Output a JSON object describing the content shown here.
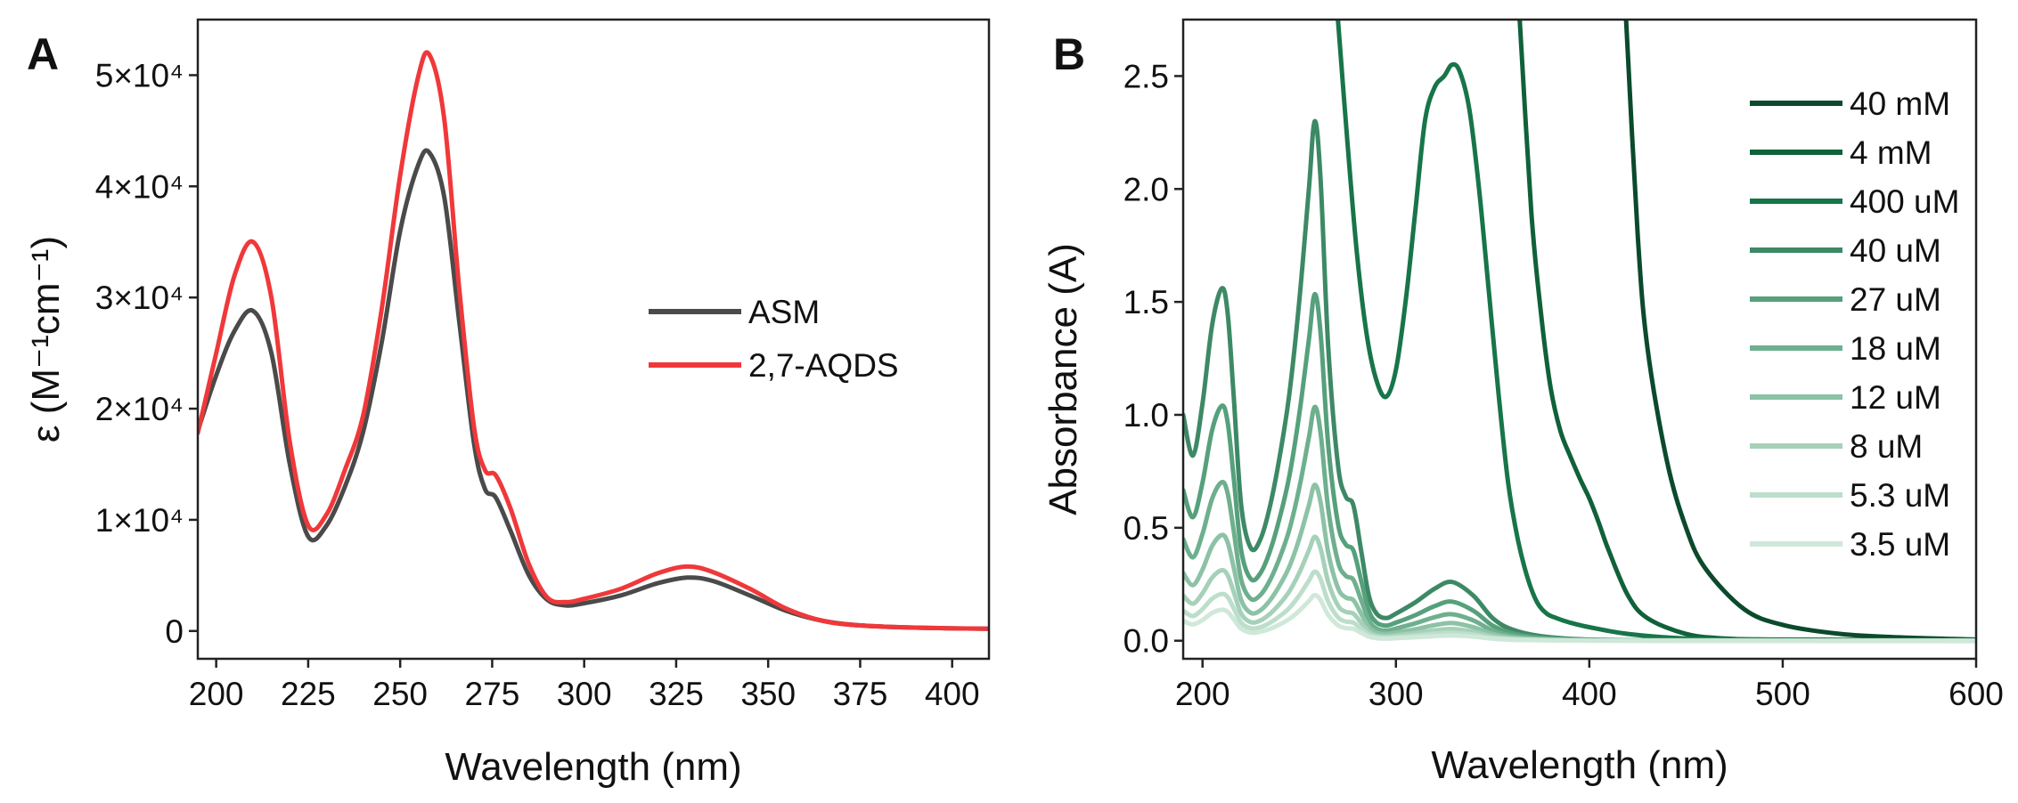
{
  "chart_data": [
    {
      "panel": "A",
      "type": "line",
      "xlabel": "Wavelength (nm)",
      "ylabel": "ε (M⁻¹cm⁻¹)",
      "xlim": [
        195,
        410
      ],
      "ylim": [
        -2500,
        55000
      ],
      "x_ticks": [
        200,
        225,
        250,
        275,
        300,
        325,
        350,
        375,
        400
      ],
      "y_ticks": [
        {
          "value": 0,
          "label": "0"
        },
        {
          "value": 10000,
          "label": "1×10⁴"
        },
        {
          "value": 20000,
          "label": "2×10⁴"
        },
        {
          "value": 30000,
          "label": "3×10⁴"
        },
        {
          "value": 40000,
          "label": "4×10⁴"
        },
        {
          "value": 50000,
          "label": "5×10⁴"
        }
      ],
      "legend_position": "center-right",
      "series": [
        {
          "name": "ASM",
          "color": "#4a4a4a",
          "x": [
            195,
            200,
            205,
            210,
            215,
            220,
            225,
            230,
            235,
            240,
            245,
            250,
            255,
            258,
            262,
            266,
            270,
            273,
            276,
            280,
            285,
            290,
            295,
            300,
            310,
            320,
            328,
            335,
            345,
            355,
            365,
            375,
            390,
            410
          ],
          "y": [
            18000,
            23000,
            27000,
            28800,
            25000,
            15000,
            8500,
            9500,
            13000,
            18000,
            26000,
            36000,
            42000,
            43000,
            39000,
            28000,
            17000,
            12800,
            12000,
            9000,
            5000,
            2800,
            2300,
            2500,
            3200,
            4300,
            4800,
            4500,
            3200,
            1800,
            900,
            500,
            300,
            200
          ]
        },
        {
          "name": "2,7-AQDS",
          "color": "#f0383a",
          "x": [
            195,
            200,
            205,
            210,
            215,
            220,
            225,
            230,
            235,
            240,
            245,
            250,
            255,
            258,
            262,
            266,
            270,
            273,
            276,
            280,
            285,
            290,
            295,
            300,
            310,
            320,
            328,
            335,
            345,
            355,
            365,
            375,
            390,
            410
          ],
          "y": [
            17800,
            25000,
            32000,
            35000,
            30000,
            17000,
            9500,
            10500,
            14500,
            19500,
            29000,
            41000,
            50000,
            51800,
            46000,
            31000,
            18500,
            14500,
            14000,
            11000,
            6000,
            3000,
            2600,
            2900,
            3800,
            5200,
            5800,
            5300,
            3800,
            2000,
            900,
            500,
            300,
            200
          ]
        }
      ]
    },
    {
      "panel": "B",
      "type": "line",
      "xlabel": "Wavelength (nm)",
      "ylabel": "Absorbance (A)",
      "xlim": [
        190,
        600
      ],
      "ylim": [
        -0.08,
        2.75
      ],
      "x_ticks": [
        200,
        300,
        400,
        500,
        600
      ],
      "y_ticks": [
        0.0,
        0.5,
        1.0,
        1.5,
        2.0,
        2.5
      ],
      "y_tick_labels": [
        "0.0",
        "0.5",
        "1.0",
        "1.5",
        "2.0",
        "2.5"
      ],
      "legend_position": "top-right",
      "series": [
        {
          "name": "40 mM",
          "color": "#0b4a2c",
          "x": [
            419,
            425,
            430,
            440,
            450,
            460,
            480,
            500,
            530,
            560,
            600
          ],
          "y": [
            2.75,
            1.8,
            1.3,
            0.8,
            0.5,
            0.32,
            0.14,
            0.07,
            0.03,
            0.015,
            0.005
          ]
        },
        {
          "name": "4 mM",
          "color": "#10613a",
          "x": [
            364,
            370,
            375,
            380,
            385,
            390,
            395,
            400,
            405,
            410,
            420,
            430,
            450,
            470,
            500,
            600
          ],
          "y": [
            2.75,
            1.9,
            1.45,
            1.12,
            0.93,
            0.82,
            0.72,
            0.63,
            0.52,
            0.4,
            0.2,
            0.1,
            0.03,
            0.01,
            0.005,
            0.002
          ]
        },
        {
          "name": "400 uM",
          "color": "#177549",
          "x": [
            270,
            275,
            280,
            285,
            290,
            295,
            300,
            305,
            310,
            315,
            320,
            325,
            329,
            333,
            338,
            343,
            348,
            353,
            358,
            363,
            368,
            373,
            378,
            383,
            390,
            400,
            420,
            450,
            500,
            600
          ],
          "y": [
            2.75,
            2.2,
            1.7,
            1.35,
            1.15,
            1.08,
            1.2,
            1.5,
            1.9,
            2.3,
            2.45,
            2.5,
            2.55,
            2.52,
            2.35,
            2.0,
            1.55,
            1.1,
            0.7,
            0.45,
            0.28,
            0.17,
            0.12,
            0.1,
            0.08,
            0.06,
            0.03,
            0.01,
            0.003,
            0.001
          ]
        },
        {
          "name": "40 uM",
          "color": "#3d8966",
          "scale": 1.0,
          "x": [
            190,
            195,
            200,
            205,
            210,
            213,
            216,
            220,
            225,
            230,
            235,
            240,
            245,
            250,
            255,
            258,
            261,
            265,
            270,
            274,
            278,
            282,
            286,
            290,
            295,
            300,
            310,
            320,
            329,
            340,
            350,
            360,
            375,
            400,
            450,
            600
          ],
          "y": [
            1.0,
            0.82,
            1.05,
            1.4,
            1.56,
            1.45,
            1.1,
            0.6,
            0.41,
            0.45,
            0.6,
            0.82,
            1.1,
            1.5,
            2.0,
            2.3,
            2.05,
            1.3,
            0.78,
            0.64,
            0.6,
            0.4,
            0.2,
            0.12,
            0.1,
            0.12,
            0.17,
            0.23,
            0.26,
            0.2,
            0.1,
            0.05,
            0.02,
            0.005,
            0.002,
            0.001
          ]
        },
        {
          "name": "27 uM",
          "color": "#56a07c",
          "scale": 0.667,
          "x": [
            190,
            195,
            200,
            205,
            210,
            213,
            216,
            220,
            225,
            230,
            235,
            240,
            245,
            250,
            255,
            258,
            261,
            265,
            270,
            274,
            278,
            282,
            286,
            290,
            295,
            300,
            310,
            320,
            329,
            340,
            350,
            360,
            375,
            400,
            450,
            600
          ],
          "y": [
            0.667,
            0.547,
            0.7,
            0.934,
            1.04,
            0.967,
            0.734,
            0.4,
            0.273,
            0.3,
            0.4,
            0.547,
            0.734,
            1.0,
            1.334,
            1.534,
            1.367,
            0.867,
            0.52,
            0.427,
            0.4,
            0.267,
            0.133,
            0.08,
            0.067,
            0.08,
            0.113,
            0.153,
            0.173,
            0.133,
            0.067,
            0.033,
            0.013,
            0.003,
            0.001,
            0.001
          ]
        },
        {
          "name": "18 uM",
          "color": "#6eaf8e",
          "scale": 0.45,
          "x": [
            190,
            195,
            200,
            205,
            210,
            213,
            216,
            220,
            225,
            230,
            235,
            240,
            245,
            250,
            255,
            258,
            261,
            265,
            270,
            274,
            278,
            282,
            286,
            290,
            295,
            300,
            310,
            320,
            329,
            340,
            350,
            360,
            375,
            400,
            450,
            600
          ],
          "y": [
            0.45,
            0.369,
            0.473,
            0.63,
            0.702,
            0.653,
            0.495,
            0.27,
            0.185,
            0.203,
            0.27,
            0.369,
            0.495,
            0.675,
            0.9,
            1.035,
            0.923,
            0.585,
            0.351,
            0.288,
            0.27,
            0.18,
            0.09,
            0.054,
            0.045,
            0.054,
            0.077,
            0.104,
            0.117,
            0.09,
            0.045,
            0.023,
            0.009,
            0.002,
            0.001,
            0.0
          ]
        },
        {
          "name": "12 uM",
          "color": "#8cc2a5",
          "scale": 0.3,
          "x": [
            190,
            195,
            200,
            205,
            210,
            213,
            216,
            220,
            225,
            230,
            235,
            240,
            245,
            250,
            255,
            258,
            261,
            265,
            270,
            274,
            278,
            282,
            286,
            290,
            295,
            300,
            310,
            320,
            329,
            340,
            350,
            360,
            375,
            400,
            450,
            600
          ],
          "y": [
            0.3,
            0.246,
            0.315,
            0.42,
            0.468,
            0.435,
            0.33,
            0.18,
            0.123,
            0.135,
            0.18,
            0.246,
            0.33,
            0.45,
            0.6,
            0.69,
            0.615,
            0.39,
            0.234,
            0.192,
            0.18,
            0.12,
            0.06,
            0.036,
            0.03,
            0.036,
            0.051,
            0.069,
            0.078,
            0.06,
            0.03,
            0.015,
            0.006,
            0.002,
            0.001,
            0.0
          ]
        },
        {
          "name": "8 uM",
          "color": "#a6d1b9",
          "scale": 0.2,
          "x": [
            190,
            195,
            200,
            205,
            210,
            213,
            216,
            220,
            225,
            230,
            235,
            240,
            245,
            250,
            255,
            258,
            261,
            265,
            270,
            274,
            278,
            282,
            286,
            290,
            295,
            300,
            310,
            320,
            329,
            340,
            350,
            360,
            375,
            400,
            450,
            600
          ],
          "y": [
            0.2,
            0.164,
            0.21,
            0.28,
            0.312,
            0.29,
            0.22,
            0.12,
            0.082,
            0.09,
            0.12,
            0.164,
            0.22,
            0.3,
            0.4,
            0.46,
            0.41,
            0.26,
            0.156,
            0.128,
            0.12,
            0.08,
            0.04,
            0.024,
            0.02,
            0.024,
            0.034,
            0.046,
            0.052,
            0.04,
            0.02,
            0.01,
            0.004,
            0.001,
            0.0,
            0.0
          ]
        },
        {
          "name": "5.3 uM",
          "color": "#bcdeca",
          "scale": 0.133,
          "x": [
            190,
            195,
            200,
            205,
            210,
            213,
            216,
            220,
            225,
            230,
            235,
            240,
            245,
            250,
            255,
            258,
            261,
            265,
            270,
            274,
            278,
            282,
            286,
            290,
            295,
            300,
            310,
            320,
            329,
            340,
            350,
            360,
            375,
            400,
            450,
            600
          ],
          "y": [
            0.133,
            0.109,
            0.14,
            0.186,
            0.207,
            0.193,
            0.146,
            0.08,
            0.055,
            0.06,
            0.08,
            0.109,
            0.146,
            0.2,
            0.266,
            0.306,
            0.273,
            0.173,
            0.104,
            0.085,
            0.08,
            0.053,
            0.027,
            0.016,
            0.013,
            0.016,
            0.023,
            0.031,
            0.035,
            0.027,
            0.013,
            0.007,
            0.003,
            0.001,
            0.0,
            0.0
          ]
        },
        {
          "name": "3.5 uM",
          "color": "#cfe8d9",
          "scale": 0.088,
          "x": [
            190,
            195,
            200,
            205,
            210,
            213,
            216,
            220,
            225,
            230,
            235,
            240,
            245,
            250,
            255,
            258,
            261,
            265,
            270,
            274,
            278,
            282,
            286,
            290,
            295,
            300,
            310,
            320,
            329,
            340,
            350,
            360,
            375,
            400,
            450,
            600
          ],
          "y": [
            0.088,
            0.072,
            0.092,
            0.123,
            0.137,
            0.128,
            0.097,
            0.053,
            0.036,
            0.04,
            0.053,
            0.072,
            0.097,
            0.132,
            0.176,
            0.202,
            0.18,
            0.114,
            0.069,
            0.056,
            0.053,
            0.035,
            0.018,
            0.011,
            0.009,
            0.011,
            0.015,
            0.02,
            0.023,
            0.018,
            0.009,
            0.004,
            0.002,
            0.0,
            0.0,
            0.0
          ]
        }
      ]
    }
  ]
}
